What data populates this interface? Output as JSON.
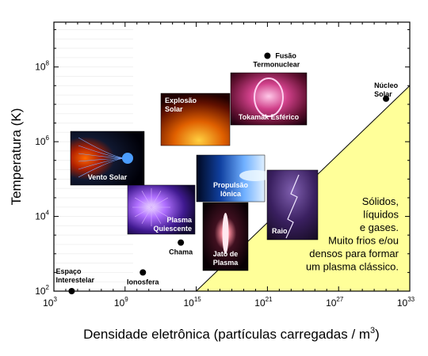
{
  "chart_data": {
    "type": "scatter",
    "xlabel": "Densidade eletrônica (partículas carregadas / m",
    "xlabel_sup": "3",
    "xlabel_end": ")",
    "ylabel": "Temperatura (K)",
    "x_log": true,
    "y_log": true,
    "xlim_exp": [
      3,
      33
    ],
    "ylim_exp": [
      2,
      9.2
    ],
    "x_ticks": [
      {
        "base": "10",
        "exp": "3",
        "value": 3
      },
      {
        "base": "10",
        "exp": "9",
        "value": 9
      },
      {
        "base": "10",
        "exp": "15",
        "value": 15
      },
      {
        "base": "10",
        "exp": "21",
        "value": 21
      },
      {
        "base": "10",
        "exp": "27",
        "value": 27
      },
      {
        "base": "10",
        "exp": "33",
        "value": 33
      }
    ],
    "y_ticks": [
      {
        "base": "10",
        "exp": "2",
        "value": 2
      },
      {
        "base": "10",
        "exp": "4",
        "value": 4
      },
      {
        "base": "10",
        "exp": "6",
        "value": 6
      },
      {
        "base": "10",
        "exp": "8",
        "value": 8
      }
    ],
    "points": [
      {
        "name": "Espaço Interestelar",
        "lines": [
          "Espaço",
          "Interestelar"
        ],
        "x": 4.5,
        "y": 2.0,
        "label_pos": "above-left"
      },
      {
        "name": "Ionosfera",
        "lines": [
          "Ionosfera"
        ],
        "x": 10.5,
        "y": 2.5,
        "label_pos": "below"
      },
      {
        "name": "Chama",
        "lines": [
          "Chama"
        ],
        "x": 13.7,
        "y": 3.3,
        "label_pos": "below"
      },
      {
        "name": "Fusão Termonuclear",
        "lines": [
          "Fusão",
          "Termonuclear"
        ],
        "x": 21.0,
        "y": 8.3,
        "label_pos": "right"
      },
      {
        "name": "Núcleo Solar",
        "lines": [
          "Núcleo",
          "Solar"
        ],
        "x": 31.0,
        "y": 7.15,
        "label_pos": "above"
      }
    ],
    "region": {
      "boundary": [
        [
          15.0,
          2.0
        ],
        [
          33.0,
          7.5
        ]
      ],
      "lines": [
        "Sólidos,",
        "líquidos",
        "e gases.",
        "Muito frios e/ou",
        "densos para formar",
        "um plasma clássico."
      ],
      "color": "#ffff99"
    },
    "images": [
      {
        "name": "Vento Solar",
        "lines": [
          "Vento Solar"
        ],
        "theme": "solarwind"
      },
      {
        "name": "Explosão Solar",
        "lines": [
          "Explosão",
          "Solar"
        ],
        "theme": "flare"
      },
      {
        "name": "Tokamak Esférico",
        "lines": [
          "Tokamak Esférico"
        ],
        "theme": "tokamak"
      },
      {
        "name": "Plasma Quiescente",
        "lines": [
          "Plasma",
          "Quiescente"
        ],
        "theme": "quiescent"
      },
      {
        "name": "Propulsão Iônica",
        "lines": [
          "Propulsão",
          "Iônica"
        ],
        "theme": "ion"
      },
      {
        "name": "Raio",
        "lines": [
          "Raio"
        ],
        "theme": "lightning"
      },
      {
        "name": "Jato de Plasma",
        "lines": [
          "Jato de",
          "Plasma"
        ],
        "theme": "jet"
      }
    ]
  }
}
